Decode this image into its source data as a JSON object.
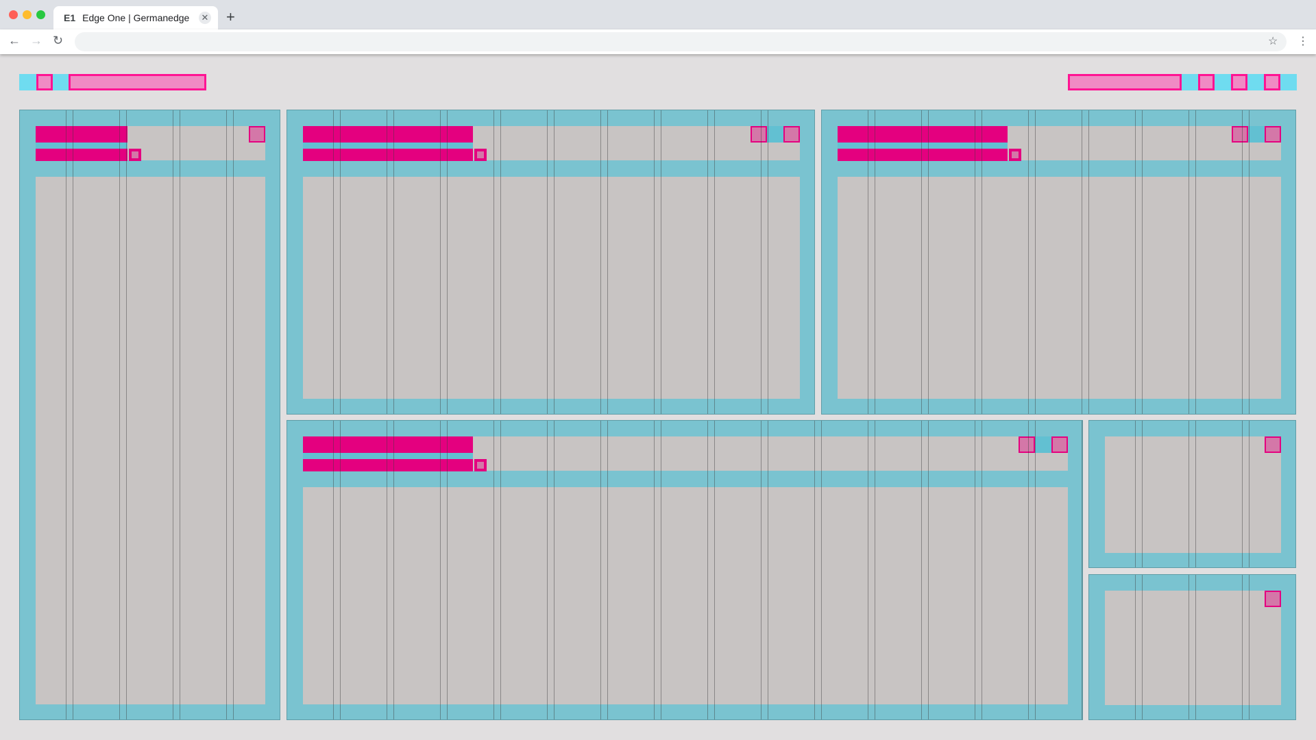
{
  "browser": {
    "tab_favicon": "E1",
    "tab_title": "Edge One | Germanedge",
    "close": "✕",
    "new_tab": "+",
    "back": "←",
    "forward": "→",
    "reload": "↻",
    "bookmark": "☆",
    "menu": "⋮",
    "address": ""
  },
  "colors": {
    "background": "#e1dfe0",
    "panel": "#7ac3d0",
    "placeholder": "#c8c4c3",
    "accent": "#e4007f",
    "accent_light": "#f08ac4",
    "toolbar_cyan": "#6fdcf0"
  },
  "layout_grid": {
    "columns": 24
  }
}
